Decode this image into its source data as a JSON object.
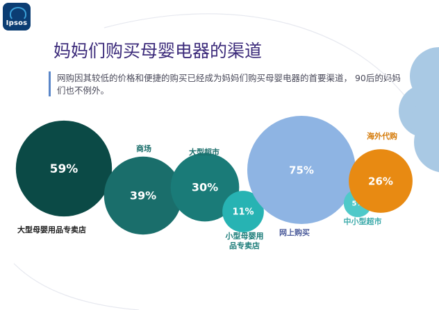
{
  "header": {
    "logo_text": "Ipsos",
    "title": "妈妈们购买母婴电器的渠道",
    "subtitle": "网购因其较低的价格和便捷的购买已经成为妈妈们购买母婴电器的首要渠道， 90后的妈妈们也不例外。"
  },
  "colors": {
    "title": "#3b2a7a",
    "dark_teal": "#0b4a46",
    "teal": "#1a6e6b",
    "mid_teal": "#1a7b78",
    "light_teal": "#27b3b3",
    "turquoise": "#4fc9c9",
    "light_blue": "#8eb4e3",
    "orange": "#e88a12",
    "deco_blue": "#a9c9e4"
  },
  "chart_data": {
    "type": "bubble",
    "title": "妈妈们购买母婴电器的渠道",
    "unit": "%",
    "categories": [
      "大型母婴用品专卖店",
      "商场",
      "大型超市",
      "小型母婴用品专卖店",
      "网上购买",
      "中小型超市",
      "海外代购"
    ],
    "values": [
      59,
      39,
      30,
      11,
      75,
      5,
      26
    ],
    "value_labels": [
      "59%",
      "39%",
      "30%",
      "11%",
      "75%",
      "5%",
      "26%"
    ]
  }
}
